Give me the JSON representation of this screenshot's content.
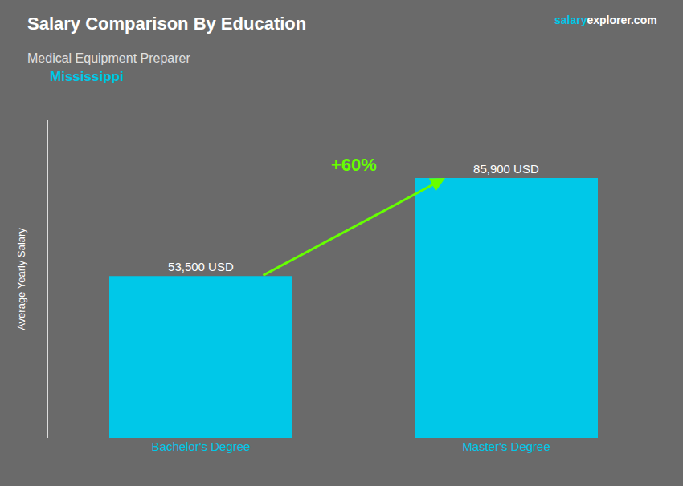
{
  "chart_data": {
    "type": "bar",
    "title": "Salary Comparison By Education",
    "subtitle": "Medical Equipment Preparer",
    "ylabel": "Average Yearly Salary",
    "categories": [
      "Bachelor's Degree",
      "Master's Degree"
    ],
    "values": [
      53500,
      85900
    ],
    "value_labels": [
      "53,500 USD",
      "85,900 USD"
    ],
    "color": "#00c8e8",
    "ylim": [
      0,
      105000
    ],
    "data_labels": true,
    "tick_labels": "x",
    "grid": false,
    "annotations": [
      {
        "text": "Mississippi",
        "color": "#00c8e8"
      },
      {
        "text": "+60%",
        "color": "#66ff00"
      },
      {
        "text": "salary",
        "color": "#00c8e8"
      },
      {
        "text": "explorer.com",
        "color": "#ffffff"
      }
    ]
  }
}
